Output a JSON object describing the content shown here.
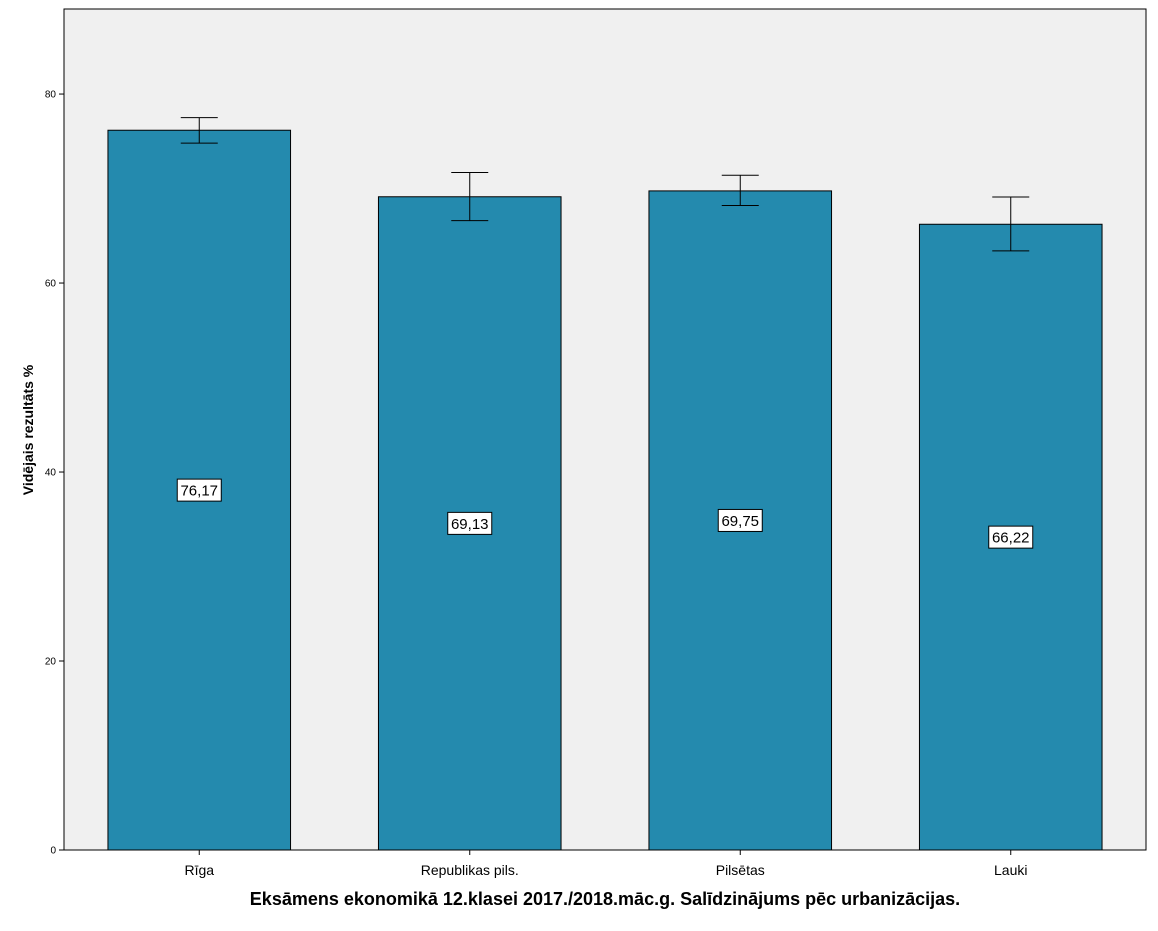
{
  "chart_data": {
    "type": "bar",
    "categories": [
      "Rīga",
      "Republikas pils.",
      "Pilsētas",
      "Lauki"
    ],
    "values": [
      76.17,
      69.13,
      69.75,
      66.22
    ],
    "value_labels": [
      "76,17",
      "69,13",
      "69,75",
      "66,22"
    ],
    "error_bars": {
      "upper": [
        77.5,
        71.7,
        71.4,
        69.1
      ],
      "lower": [
        74.8,
        66.6,
        68.2,
        63.4
      ]
    },
    "title": "",
    "xlabel": "Eksāmens ekonomikā 12.klasei 2017./2018.māc.g. Salīdzinājums pēc urbanizācijas.",
    "ylabel": "Vidējais rezultāts %",
    "ylim": [
      0,
      89
    ],
    "yticks": [
      0,
      20,
      40,
      60,
      80
    ],
    "grid": false,
    "legend": "none",
    "colors": {
      "bar": "#248AAE",
      "plot_background": "#F0F0F0",
      "outline": "#000000"
    }
  }
}
